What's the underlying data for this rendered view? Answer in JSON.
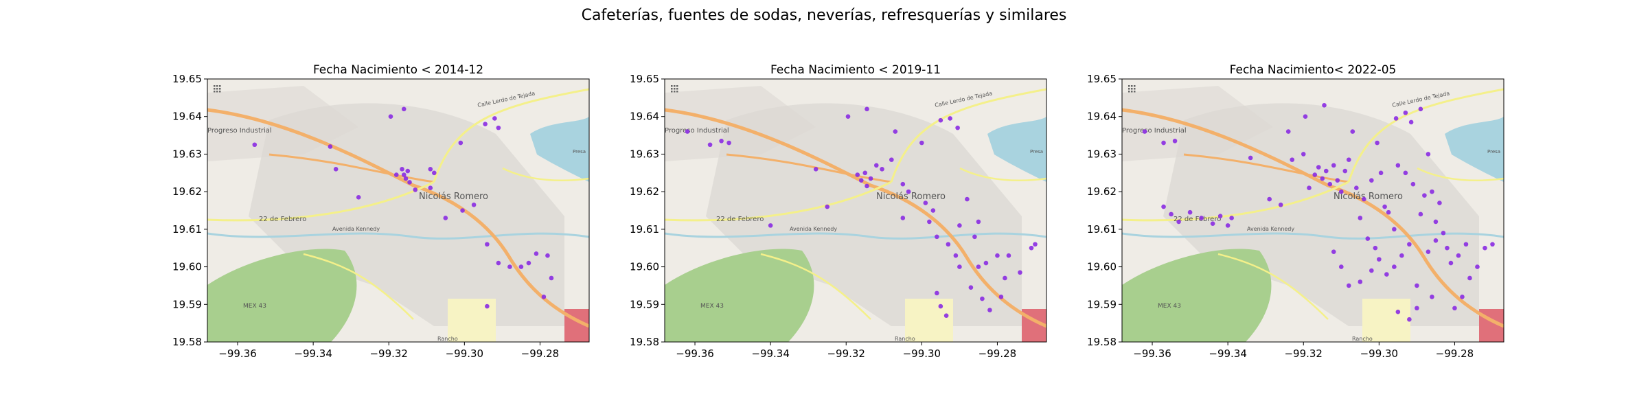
{
  "figure": {
    "suptitle": "Cafeterías, fuentes de sodas, neverías, refresquerías y similares"
  },
  "colors": {
    "point": "#8a2be2",
    "land": "#efece6",
    "urban": "#dcd9d4",
    "park": "#a8cf8e",
    "water": "#a9d3df",
    "highway": "#f3b06a",
    "road": "#f4f08a"
  },
  "map_labels": {
    "progreso": "Progreso Industrial",
    "nicolas": "Nicolás Romero",
    "febrero": "22 de Febrero",
    "calle_lerdo": "Calle Lerdo de Tejada",
    "avenida": "Avenida Kennedy",
    "mex43": "MEX 43",
    "rancho": "Rancho",
    "presa": "Presa"
  },
  "chart_data": [
    {
      "type": "scatter",
      "title": "Fecha Nacimiento < 2014-12",
      "xlim": [
        -99.368,
        -99.267
      ],
      "ylim": [
        19.58,
        19.65
      ],
      "xticks": [
        -99.36,
        -99.34,
        -99.32,
        -99.3,
        -99.28
      ],
      "xtick_labels": [
        "−99.36",
        "−99.34",
        "−99.32",
        "−99.30",
        "−99.28"
      ],
      "yticks": [
        19.58,
        19.59,
        19.6,
        19.61,
        19.62,
        19.63,
        19.64,
        19.65
      ],
      "ytick_labels": [
        "19.58",
        "19.59",
        "19.60",
        "19.61",
        "19.62",
        "19.63",
        "19.64",
        "19.65"
      ],
      "points": [
        [
          -99.3555,
          19.6325
        ],
        [
          -99.3355,
          19.632
        ],
        [
          -99.334,
          19.626
        ],
        [
          -99.328,
          19.6185
        ],
        [
          -99.3195,
          19.64
        ],
        [
          -99.316,
          19.642
        ],
        [
          -99.318,
          19.6245
        ],
        [
          -99.3165,
          19.626
        ],
        [
          -99.316,
          19.6245
        ],
        [
          -99.3155,
          19.6235
        ],
        [
          -99.315,
          19.6255
        ],
        [
          -99.3145,
          19.6225
        ],
        [
          -99.313,
          19.6205
        ],
        [
          -99.309,
          19.626
        ],
        [
          -99.309,
          19.621
        ],
        [
          -99.308,
          19.625
        ],
        [
          -99.305,
          19.613
        ],
        [
          -99.301,
          19.633
        ],
        [
          -99.3005,
          19.615
        ],
        [
          -99.2975,
          19.6165
        ],
        [
          -99.2945,
          19.638
        ],
        [
          -99.292,
          19.6395
        ],
        [
          -99.291,
          19.637
        ],
        [
          -99.294,
          19.606
        ],
        [
          -99.291,
          19.601
        ],
        [
          -99.288,
          19.6
        ],
        [
          -99.285,
          19.6
        ],
        [
          -99.283,
          19.601
        ],
        [
          -99.281,
          19.6035
        ],
        [
          -99.278,
          19.603
        ],
        [
          -99.277,
          19.597
        ],
        [
          -99.279,
          19.592
        ],
        [
          -99.294,
          19.5895
        ]
      ]
    },
    {
      "type": "scatter",
      "title": "Fecha Nacimiento < 2019-11",
      "xlim": [
        -99.368,
        -99.267
      ],
      "ylim": [
        19.58,
        19.65
      ],
      "xticks": [
        -99.36,
        -99.34,
        -99.32,
        -99.3,
        -99.28
      ],
      "xtick_labels": [
        "−99.36",
        "−99.34",
        "−99.32",
        "−99.30",
        "−99.28"
      ],
      "yticks": [
        19.58,
        19.59,
        19.6,
        19.61,
        19.62,
        19.63,
        19.64,
        19.65
      ],
      "ytick_labels": [
        "19.58",
        "19.59",
        "19.60",
        "19.61",
        "19.62",
        "19.63",
        "19.64",
        "19.65"
      ],
      "points": [
        [
          -99.362,
          19.636
        ],
        [
          -99.356,
          19.6325
        ],
        [
          -99.353,
          19.6335
        ],
        [
          -99.351,
          19.633
        ],
        [
          -99.34,
          19.611
        ],
        [
          -99.328,
          19.626
        ],
        [
          -99.325,
          19.616
        ],
        [
          -99.3195,
          19.64
        ],
        [
          -99.3145,
          19.642
        ],
        [
          -99.317,
          19.6245
        ],
        [
          -99.316,
          19.623
        ],
        [
          -99.315,
          19.625
        ],
        [
          -99.3145,
          19.6215
        ],
        [
          -99.3135,
          19.6235
        ],
        [
          -99.312,
          19.627
        ],
        [
          -99.3105,
          19.626
        ],
        [
          -99.308,
          19.6285
        ],
        [
          -99.307,
          19.636
        ],
        [
          -99.305,
          19.622
        ],
        [
          -99.3035,
          19.62
        ],
        [
          -99.305,
          19.613
        ],
        [
          -99.3,
          19.633
        ],
        [
          -99.299,
          19.617
        ],
        [
          -99.297,
          19.615
        ],
        [
          -99.298,
          19.612
        ],
        [
          -99.296,
          19.608
        ],
        [
          -99.295,
          19.639
        ],
        [
          -99.2925,
          19.6395
        ],
        [
          -99.2905,
          19.637
        ],
        [
          -99.293,
          19.606
        ],
        [
          -99.291,
          19.603
        ],
        [
          -99.29,
          19.6
        ],
        [
          -99.288,
          19.618
        ],
        [
          -99.286,
          19.608
        ],
        [
          -99.285,
          19.6
        ],
        [
          -99.283,
          19.601
        ],
        [
          -99.28,
          19.603
        ],
        [
          -99.277,
          19.603
        ],
        [
          -99.278,
          19.597
        ],
        [
          -99.279,
          19.592
        ],
        [
          -99.274,
          19.5985
        ],
        [
          -99.271,
          19.605
        ],
        [
          -99.27,
          19.606
        ],
        [
          -99.295,
          19.5895
        ],
        [
          -99.2935,
          19.587
        ],
        [
          -99.296,
          19.593
        ],
        [
          -99.287,
          19.5945
        ],
        [
          -99.284,
          19.5915
        ],
        [
          -99.282,
          19.5885
        ],
        [
          -99.285,
          19.612
        ],
        [
          -99.29,
          19.611
        ]
      ]
    },
    {
      "type": "scatter",
      "title": "Fecha Nacimiento< 2022-05",
      "xlim": [
        -99.368,
        -99.267
      ],
      "ylim": [
        19.58,
        19.65
      ],
      "xticks": [
        -99.36,
        -99.34,
        -99.32,
        -99.3,
        -99.28
      ],
      "xtick_labels": [
        "−99.36",
        "−99.34",
        "−99.32",
        "−99.30",
        "−99.28"
      ],
      "yticks": [
        19.58,
        19.59,
        19.6,
        19.61,
        19.62,
        19.63,
        19.64,
        19.65
      ],
      "ytick_labels": [
        "19.58",
        "19.59",
        "19.60",
        "19.61",
        "19.62",
        "19.63",
        "19.64",
        "19.65"
      ],
      "points": [
        [
          -99.362,
          19.636
        ],
        [
          -99.357,
          19.633
        ],
        [
          -99.354,
          19.6335
        ],
        [
          -99.357,
          19.616
        ],
        [
          -99.355,
          19.614
        ],
        [
          -99.353,
          19.612
        ],
        [
          -99.35,
          19.6145
        ],
        [
          -99.347,
          19.613
        ],
        [
          -99.344,
          19.6115
        ],
        [
          -99.342,
          19.6135
        ],
        [
          -99.34,
          19.611
        ],
        [
          -99.339,
          19.613
        ],
        [
          -99.334,
          19.629
        ],
        [
          -99.329,
          19.618
        ],
        [
          -99.326,
          19.6165
        ],
        [
          -99.324,
          19.636
        ],
        [
          -99.323,
          19.6285
        ],
        [
          -99.32,
          19.63
        ],
        [
          -99.3195,
          19.64
        ],
        [
          -99.3145,
          19.643
        ],
        [
          -99.3185,
          19.621
        ],
        [
          -99.317,
          19.6245
        ],
        [
          -99.316,
          19.6265
        ],
        [
          -99.315,
          19.6235
        ],
        [
          -99.314,
          19.6255
        ],
        [
          -99.313,
          19.622
        ],
        [
          -99.312,
          19.627
        ],
        [
          -99.311,
          19.623
        ],
        [
          -99.31,
          19.62
        ],
        [
          -99.309,
          19.6255
        ],
        [
          -99.308,
          19.6285
        ],
        [
          -99.307,
          19.636
        ],
        [
          -99.306,
          19.621
        ],
        [
          -99.305,
          19.613
        ],
        [
          -99.304,
          19.618
        ],
        [
          -99.302,
          19.623
        ],
        [
          -99.3005,
          19.633
        ],
        [
          -99.2995,
          19.625
        ],
        [
          -99.2985,
          19.616
        ],
        [
          -99.2975,
          19.6145
        ],
        [
          -99.296,
          19.61
        ],
        [
          -99.2955,
          19.6395
        ],
        [
          -99.293,
          19.641
        ],
        [
          -99.2915,
          19.6385
        ],
        [
          -99.289,
          19.642
        ],
        [
          -99.287,
          19.63
        ],
        [
          -99.288,
          19.619
        ],
        [
          -99.286,
          19.62
        ],
        [
          -99.285,
          19.612
        ],
        [
          -99.284,
          19.617
        ],
        [
          -99.283,
          19.609
        ],
        [
          -99.282,
          19.605
        ],
        [
          -99.281,
          19.601
        ],
        [
          -99.279,
          19.603
        ],
        [
          -99.277,
          19.606
        ],
        [
          -99.276,
          19.597
        ],
        [
          -99.274,
          19.6
        ],
        [
          -99.272,
          19.605
        ],
        [
          -99.27,
          19.606
        ],
        [
          -99.278,
          19.592
        ],
        [
          -99.28,
          19.589
        ],
        [
          -99.286,
          19.592
        ],
        [
          -99.29,
          19.595
        ],
        [
          -99.292,
          19.606
        ],
        [
          -99.294,
          19.603
        ],
        [
          -99.296,
          19.6
        ],
        [
          -99.298,
          19.598
        ],
        [
          -99.3,
          19.602
        ],
        [
          -99.302,
          19.599
        ],
        [
          -99.305,
          19.596
        ],
        [
          -99.308,
          19.595
        ],
        [
          -99.31,
          19.6
        ],
        [
          -99.312,
          19.604
        ],
        [
          -99.295,
          19.588
        ],
        [
          -99.292,
          19.586
        ],
        [
          -99.29,
          19.589
        ],
        [
          -99.287,
          19.604
        ],
        [
          -99.285,
          19.607
        ],
        [
          -99.289,
          19.614
        ],
        [
          -99.291,
          19.622
        ],
        [
          -99.293,
          19.625
        ],
        [
          -99.295,
          19.627
        ],
        [
          -99.303,
          19.6075
        ],
        [
          -99.301,
          19.605
        ]
      ]
    }
  ]
}
